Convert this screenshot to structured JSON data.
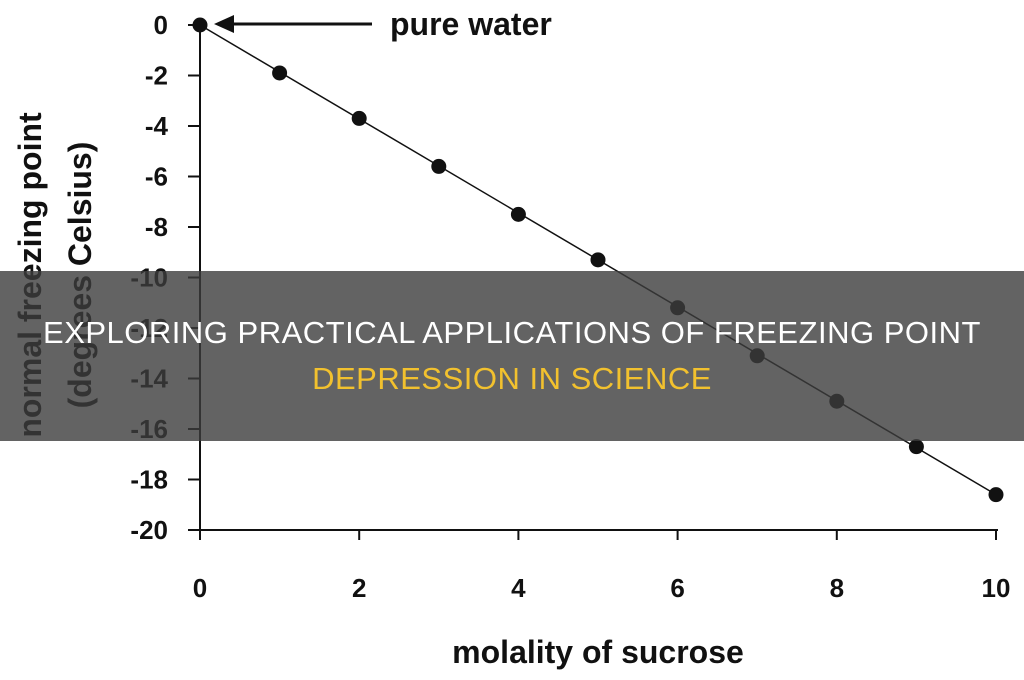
{
  "chart_data": {
    "type": "scatter",
    "title": "",
    "xlabel": "molality of sucrose",
    "ylabel_line1": "normal freezing point",
    "ylabel_line2": "(degrees Celsius)",
    "xlim": [
      0,
      10
    ],
    "ylim": [
      -20,
      0
    ],
    "x_ticks": [
      0,
      2,
      4,
      6,
      8,
      10
    ],
    "y_ticks": [
      0,
      -2,
      -4,
      -6,
      -8,
      -10,
      -12,
      -14,
      -16,
      -18,
      -20
    ],
    "grid": false,
    "legend": "none",
    "fit_line": true,
    "series": [
      {
        "x": [
          0,
          1,
          2,
          3,
          4,
          5,
          6,
          7,
          8,
          9,
          10
        ],
        "y": [
          0,
          -1.9,
          -3.7,
          -5.6,
          -7.5,
          -9.3,
          -11.2,
          -13.1,
          -14.9,
          -16.7,
          -18.6
        ]
      }
    ],
    "annotation": {
      "text": "pure water",
      "points_to": [
        0,
        0
      ]
    }
  },
  "banner": {
    "line1": "EXPLORING PRACTICAL APPLICATIONS OF FREEZING POINT",
    "line2": "DEPRESSION IN SCIENCE"
  },
  "colors": {
    "marker": "#111111",
    "line": "#111111",
    "banner_bg": "#3c3c3c",
    "banner_text": "#ffffff",
    "banner_accent": "#f2c12e"
  }
}
